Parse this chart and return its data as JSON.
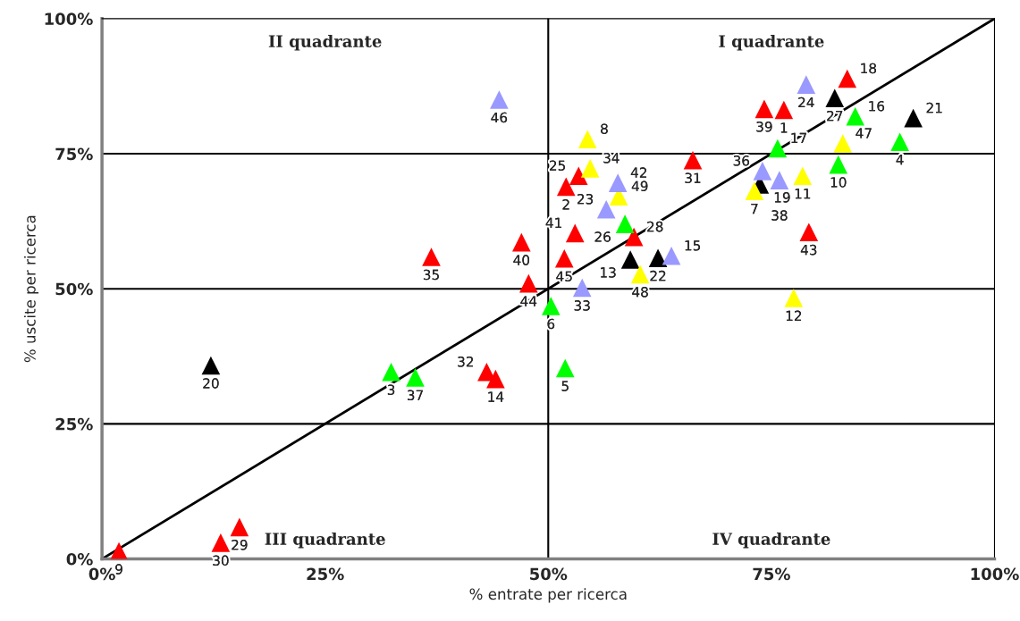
{
  "chart_data": {
    "type": "scatter",
    "xlabel": "% entrate per ricerca",
    "ylabel": "% uscite per ricerca",
    "marker": "triangle",
    "xlim": [
      0,
      100
    ],
    "ylim": [
      0,
      100
    ],
    "xticks": [
      {
        "value": 0,
        "label": "0%"
      },
      {
        "value": 25,
        "label": "25%"
      },
      {
        "value": 50,
        "label": "50%"
      },
      {
        "value": 75,
        "label": "75%"
      },
      {
        "value": 100,
        "label": "100%"
      }
    ],
    "yticks": [
      {
        "value": 0,
        "label": "0%"
      },
      {
        "value": 25,
        "label": "25%"
      },
      {
        "value": 50,
        "label": "50%"
      },
      {
        "value": 75,
        "label": "75%"
      },
      {
        "value": 100,
        "label": "100%"
      }
    ],
    "grid": false,
    "legend": false,
    "ref_lines": [
      {
        "axis": "y",
        "value": 25,
        "color": "#000000"
      },
      {
        "axis": "y",
        "value": 50,
        "color": "#000000"
      },
      {
        "axis": "y",
        "value": 75,
        "color": "#000000"
      },
      {
        "axis": "x",
        "value": 50,
        "color": "#000000"
      }
    ],
    "annotations": [
      "II quadrante",
      "I quadrante",
      "III quadrante",
      "IV quadrante",
      {
        "text": "1",
        "x": 76.4,
        "y": 83.1
      },
      {
        "text": "2",
        "x": 52.0,
        "y": 68.9
      },
      {
        "text": "9",
        "x": 1.9,
        "y": 1.4
      },
      {
        "text": "14",
        "x": 44.1,
        "y": 33.3
      },
      {
        "text": "18",
        "x": 83.5,
        "y": 88.9
      },
      {
        "text": "25",
        "x": 53.4,
        "y": 70.9
      },
      {
        "text": "28",
        "x": 59.6,
        "y": 59.6
      },
      {
        "text": "29",
        "x": 15.4,
        "y": 5.9
      },
      {
        "text": "30",
        "x": 13.3,
        "y": 3.0
      },
      {
        "text": "31",
        "x": 66.2,
        "y": 73.8
      },
      {
        "text": "32",
        "x": 43.1,
        "y": 34.6
      },
      {
        "text": "35",
        "x": 36.9,
        "y": 55.9
      },
      {
        "text": "39",
        "x": 74.2,
        "y": 83.3
      },
      {
        "text": "40",
        "x": 47.0,
        "y": 58.6
      },
      {
        "text": "41",
        "x": 53.0,
        "y": 60.3
      },
      {
        "text": "43",
        "x": 79.2,
        "y": 60.5
      },
      {
        "text": "44",
        "x": 47.8,
        "y": 51.0
      },
      {
        "text": "45",
        "x": 51.8,
        "y": 55.6
      },
      {
        "text": "3",
        "x": 32.4,
        "y": 34.6
      },
      {
        "text": "4",
        "x": 89.4,
        "y": 77.2
      },
      {
        "text": "5",
        "x": 51.9,
        "y": 35.3
      },
      {
        "text": "6",
        "x": 50.3,
        "y": 46.8
      },
      {
        "text": "10",
        "x": 82.5,
        "y": 73.0
      },
      {
        "text": "16",
        "x": 84.4,
        "y": 81.9
      },
      {
        "text": "17",
        "x": 75.7,
        "y": 76.0
      },
      {
        "text": "26",
        "x": 58.6,
        "y": 62.0
      },
      {
        "text": "37",
        "x": 35.1,
        "y": 33.6
      },
      {
        "text": "13",
        "x": 59.2,
        "y": 55.4
      },
      {
        "text": "19",
        "x": 73.7,
        "y": 69.3
      },
      {
        "text": "20",
        "x": 12.2,
        "y": 35.8
      },
      {
        "text": "21",
        "x": 90.9,
        "y": 81.6
      },
      {
        "text": "22",
        "x": 62.3,
        "y": 55.7
      },
      {
        "text": "27",
        "x": 82.1,
        "y": 85.3
      },
      {
        "text": "7",
        "x": 73.1,
        "y": 68.1
      },
      {
        "text": "8",
        "x": 54.4,
        "y": 77.7
      },
      {
        "text": "11",
        "x": 78.5,
        "y": 70.9
      },
      {
        "text": "12",
        "x": 77.5,
        "y": 48.3
      },
      {
        "text": "34",
        "x": 54.7,
        "y": 72.3
      },
      {
        "text": "47",
        "x": 83.0,
        "y": 76.9
      },
      {
        "text": "48",
        "x": 60.3,
        "y": 52.7
      },
      {
        "text": "49",
        "x": 57.9,
        "y": 67.1
      },
      {
        "text": "15",
        "x": 63.8,
        "y": 56.1
      },
      {
        "text": "23",
        "x": 56.5,
        "y": 64.7
      },
      {
        "text": "24",
        "x": 78.9,
        "y": 87.8
      },
      {
        "text": "33",
        "x": 53.8,
        "y": 50.2
      },
      {
        "text": "36",
        "x": 74.0,
        "y": 71.8
      },
      {
        "text": "38",
        "x": 75.9,
        "y": 70.1
      },
      {
        "text": "42",
        "x": 57.8,
        "y": 69.6
      },
      {
        "text": "46",
        "x": 44.5,
        "y": 85.0
      }
    ],
    "series": [
      {
        "type": "line",
        "color": "#000000",
        "x": [
          0,
          100
        ],
        "values": [
          0,
          100
        ],
        "marker": "none"
      },
      {
        "color": "#ff0000",
        "x": [
          76.4,
          52.0,
          1.9,
          44.1,
          83.5,
          53.4,
          59.6,
          15.4,
          13.3,
          66.2,
          43.1,
          36.9,
          74.2,
          47.0,
          53.0,
          79.2,
          47.8,
          51.8
        ],
        "values": [
          83.1,
          68.9,
          1.4,
          33.3,
          88.9,
          70.9,
          59.6,
          5.9,
          3.0,
          73.8,
          34.6,
          55.9,
          83.3,
          58.6,
          60.3,
          60.5,
          51.0,
          55.6
        ]
      },
      {
        "color": "#00ff00",
        "x": [
          32.4,
          89.4,
          51.9,
          50.3,
          82.5,
          84.4,
          75.7,
          58.6,
          35.1
        ],
        "values": [
          34.6,
          77.2,
          35.3,
          46.8,
          73.0,
          81.9,
          76.0,
          62.0,
          33.6
        ]
      },
      {
        "color": "#000000",
        "x": [
          59.2,
          73.7,
          12.2,
          90.9,
          62.3,
          82.1
        ],
        "values": [
          55.4,
          69.3,
          35.8,
          81.6,
          55.7,
          85.3
        ]
      },
      {
        "color": "#ffff00",
        "x": [
          73.1,
          54.4,
          78.5,
          77.5,
          54.7,
          83.0,
          60.3,
          57.9
        ],
        "values": [
          68.1,
          77.7,
          70.9,
          48.3,
          72.3,
          76.9,
          52.7,
          67.1
        ]
      },
      {
        "color": "#9999ff",
        "x": [
          63.8,
          56.5,
          78.9,
          53.8,
          74.0,
          75.9,
          57.8,
          44.5
        ],
        "values": [
          56.1,
          64.7,
          87.8,
          50.2,
          71.8,
          70.1,
          69.6,
          85.0
        ]
      }
    ]
  }
}
